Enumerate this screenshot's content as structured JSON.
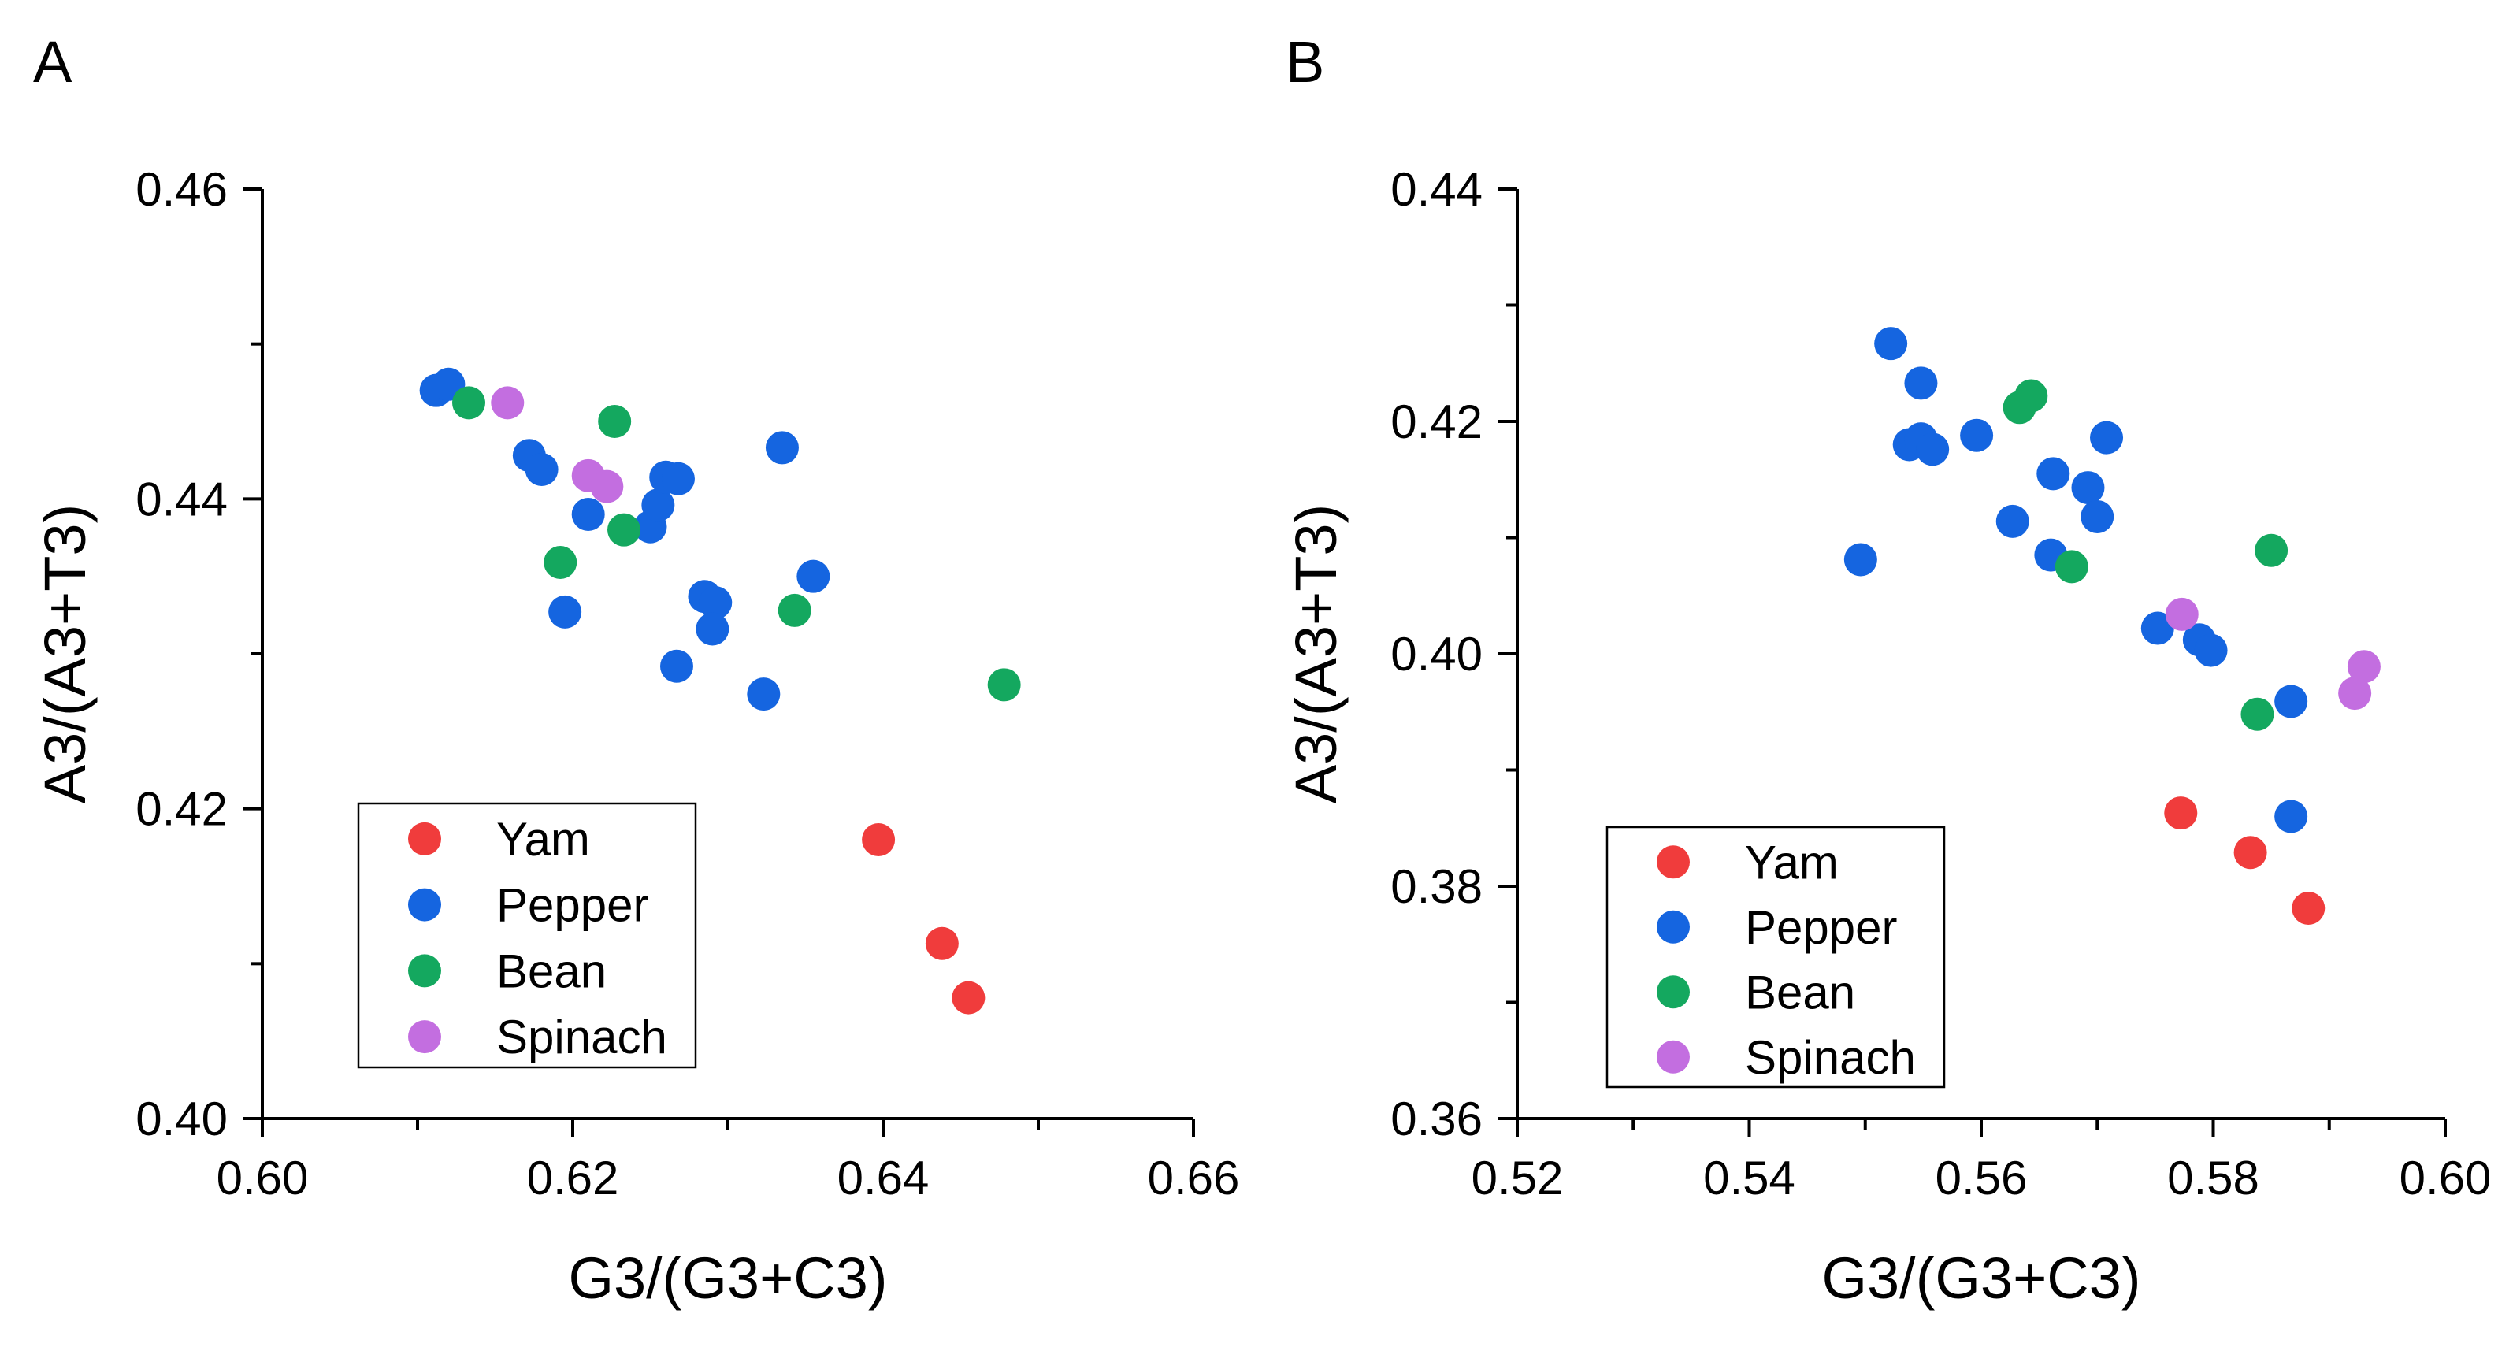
{
  "colors": {
    "Yam": "#f03c3c",
    "Pepper": "#1565e0",
    "Bean": "#14a85f",
    "Spinach": "#c36ee0",
    "axis": "#000000"
  },
  "chart_data": [
    {
      "type": "scatter",
      "panel_label": "A",
      "xlabel": "G3/(G3+C3)",
      "ylabel": "A3/(A3+T3)",
      "xlim": [
        0.6,
        0.66
      ],
      "ylim": [
        0.4,
        0.46
      ],
      "xticks": [
        0.6,
        0.62,
        0.64,
        0.66
      ],
      "xtick_labels": [
        "0.60",
        "0.62",
        "0.64",
        "0.66"
      ],
      "yticks": [
        0.4,
        0.42,
        0.44,
        0.46
      ],
      "ytick_labels": [
        "0.40",
        "0.42",
        "0.44",
        "0.46"
      ],
      "legend": [
        "Yam",
        "Pepper",
        "Bean",
        "Spinach"
      ],
      "legend_position": "bottom-left",
      "series": [
        {
          "name": "Yam",
          "points": [
            [
              0.6397,
              0.418
            ],
            [
              0.6438,
              0.4113
            ],
            [
              0.6455,
              0.4078
            ]
          ]
        },
        {
          "name": "Pepper",
          "points": [
            [
              0.6112,
              0.447
            ],
            [
              0.612,
              0.4474
            ],
            [
              0.6172,
              0.4428
            ],
            [
              0.618,
              0.4419
            ],
            [
              0.621,
              0.439
            ],
            [
              0.6195,
              0.4327
            ],
            [
              0.625,
              0.4382
            ],
            [
              0.6255,
              0.4396
            ],
            [
              0.626,
              0.4414
            ],
            [
              0.6268,
              0.4413
            ],
            [
              0.6267,
              0.4292
            ],
            [
              0.6285,
              0.4337
            ],
            [
              0.6292,
              0.4333
            ],
            [
              0.629,
              0.4316
            ],
            [
              0.6323,
              0.4274
            ],
            [
              0.6335,
              0.4433
            ],
            [
              0.6355,
              0.435
            ]
          ]
        },
        {
          "name": "Bean",
          "points": [
            [
              0.6133,
              0.4462
            ],
            [
              0.6227,
              0.445
            ],
            [
              0.6233,
              0.438
            ],
            [
              0.6192,
              0.4359
            ],
            [
              0.6343,
              0.4328
            ],
            [
              0.6478,
              0.428
            ]
          ]
        },
        {
          "name": "Spinach",
          "points": [
            [
              0.6158,
              0.4462
            ],
            [
              0.621,
              0.4415
            ],
            [
              0.6222,
              0.4408
            ]
          ]
        }
      ]
    },
    {
      "type": "scatter",
      "panel_label": "B",
      "xlabel": "G3/(G3+C3)",
      "ylabel": "A3/(A3+T3)",
      "xlim": [
        0.52,
        0.6
      ],
      "ylim": [
        0.36,
        0.44
      ],
      "xticks": [
        0.52,
        0.54,
        0.56,
        0.58,
        0.6
      ],
      "xtick_labels": [
        "0.52",
        "0.54",
        "0.56",
        "0.58",
        "0.60"
      ],
      "yticks": [
        0.36,
        0.38,
        0.4,
        0.42,
        0.44
      ],
      "ytick_labels": [
        "0.36",
        "0.38",
        "0.40",
        "0.42",
        "0.44"
      ],
      "legend": [
        "Yam",
        "Pepper",
        "Bean",
        "Spinach"
      ],
      "legend_position": "bottom-left",
      "series": [
        {
          "name": "Yam",
          "points": [
            [
              0.5772,
              0.3863
            ],
            [
              0.5832,
              0.3829
            ],
            [
              0.5882,
              0.3781
            ]
          ]
        },
        {
          "name": "Pepper",
          "points": [
            [
              0.5496,
              0.4081
            ],
            [
              0.5522,
              0.4267
            ],
            [
              0.5548,
              0.4233
            ],
            [
              0.5538,
              0.418
            ],
            [
              0.5548,
              0.4185
            ],
            [
              0.5558,
              0.4176
            ],
            [
              0.5596,
              0.4188
            ],
            [
              0.5627,
              0.4114
            ],
            [
              0.566,
              0.4085
            ],
            [
              0.5662,
              0.4155
            ],
            [
              0.5692,
              0.4143
            ],
            [
              0.57,
              0.4118
            ],
            [
              0.5708,
              0.4186
            ],
            [
              0.5752,
              0.4022
            ],
            [
              0.5788,
              0.4012
            ],
            [
              0.5798,
              0.4003
            ],
            [
              0.5867,
              0.3959
            ],
            [
              0.5867,
              0.386
            ]
          ]
        },
        {
          "name": "Bean",
          "points": [
            [
              0.5633,
              0.4212
            ],
            [
              0.5643,
              0.4222
            ],
            [
              0.5678,
              0.4075
            ],
            [
              0.585,
              0.4089
            ],
            [
              0.5838,
              0.3948
            ]
          ]
        },
        {
          "name": "Spinach",
          "points": [
            [
              0.5773,
              0.4034
            ],
            [
              0.5922,
              0.3966
            ],
            [
              0.593,
              0.3989
            ]
          ]
        }
      ]
    }
  ]
}
